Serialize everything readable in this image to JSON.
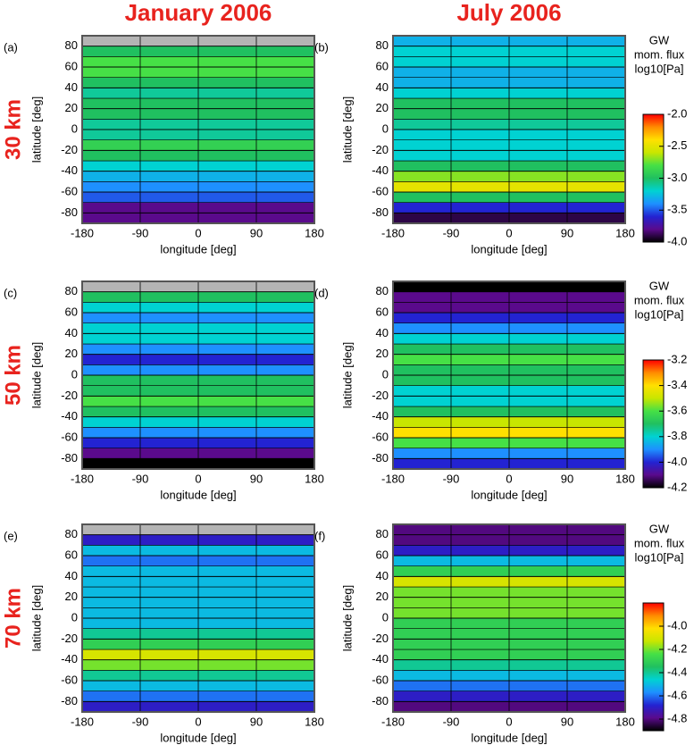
{
  "column_titles": [
    "January 2006",
    "July 2006"
  ],
  "row_labels": [
    "30 km",
    "50 km",
    "70 km"
  ],
  "colormap": [
    "#000000",
    "#5a0a8c",
    "#2323d2",
    "#1e90ff",
    "#00d2d2",
    "#20c060",
    "#46e046",
    "#c8e600",
    "#ffe000",
    "#ff8c00",
    "#ff0000"
  ],
  "colorbars": [
    {
      "title": [
        "GW",
        "mom. flux",
        "log10[Pa]"
      ],
      "lim": [
        -4,
        -2
      ],
      "ticks": [
        {
          "value": -4,
          "label": "-4.0"
        },
        -3.5,
        {
          "value": -3,
          "label": "-3.0"
        },
        -2.5,
        {
          "value": -2,
          "label": "-2.0"
        }
      ]
    },
    {
      "title": [
        "GW",
        "mom. flux",
        "log10[Pa]"
      ],
      "lim": [
        -4.2,
        -3.2
      ],
      "ticks": [
        -4.2,
        {
          "value": -4,
          "label": "-4.0"
        },
        -3.8,
        -3.6,
        -3.4,
        -3.2
      ]
    },
    {
      "title": [
        "GW",
        "mom. flux",
        "log10[Pa]"
      ],
      "lim": [
        -4.9,
        -3.8
      ],
      "ticks": [
        -4.8,
        -4.6,
        -4.4,
        -4.2,
        {
          "value": -4,
          "label": "-4.0"
        }
      ]
    }
  ],
  "panels": [
    {
      "label": "(a)",
      "xlabel": "longitude [deg]",
      "ylabel": "latitude [deg]",
      "xlim": [
        -180,
        180
      ],
      "ylim": [
        -90,
        90
      ],
      "xticks": [
        -180,
        -90,
        0,
        90,
        180
      ],
      "yticks": [
        -80,
        -60,
        -40,
        -20,
        0,
        20,
        40,
        60,
        80
      ],
      "field": {
        "lat": [
          -85,
          -75,
          -65,
          -55,
          -45,
          -35,
          -25,
          -15,
          -5,
          5,
          15,
          25,
          35,
          45,
          55,
          65,
          75,
          85
        ],
        "values": [
          -3.8,
          -3.8,
          -3.5,
          -3.4,
          -3.3,
          -3.2,
          -3.0,
          -2.9,
          -3.1,
          -3.1,
          -3.0,
          -3.0,
          -3.1,
          -3.0,
          -2.8,
          -2.8,
          -3.0,
          null
        ]
      }
    },
    {
      "label": "(b)",
      "xlabel": "longitude [deg]",
      "ylabel": "latitude [deg]",
      "xlim": [
        -180,
        180
      ],
      "ylim": [
        -90,
        90
      ],
      "xticks": [
        -180,
        -90,
        0,
        90,
        180
      ],
      "yticks": [
        -80,
        -60,
        -40,
        -20,
        0,
        20,
        40,
        60,
        80
      ],
      "field": {
        "lat": [
          -85,
          -75,
          -65,
          -55,
          -45,
          -35,
          -25,
          -15,
          -5,
          5,
          15,
          25,
          35,
          45,
          55,
          65,
          75,
          85
        ],
        "values": [
          -3.9,
          -3.6,
          -3.0,
          -2.5,
          -2.7,
          -3.0,
          -3.2,
          -3.2,
          -3.2,
          -3.1,
          -3.0,
          -3.0,
          -3.2,
          -3.3,
          -3.3,
          -3.2,
          -3.2,
          -3.3
        ]
      }
    },
    {
      "label": "(c)",
      "xlabel": "longitude [deg]",
      "ylabel": "latitude [deg]",
      "xlim": [
        -180,
        180
      ],
      "ylim": [
        -90,
        90
      ],
      "xticks": [
        -180,
        -90,
        0,
        90,
        180
      ],
      "yticks": [
        -80,
        -60,
        -40,
        -20,
        0,
        20,
        40,
        60,
        80
      ],
      "field": {
        "lat": [
          -85,
          -75,
          -65,
          -55,
          -45,
          -35,
          -25,
          -15,
          -5,
          5,
          15,
          25,
          35,
          45,
          55,
          65,
          75,
          85
        ],
        "values": [
          -4.2,
          -4.1,
          -4.0,
          -3.9,
          -3.8,
          -3.7,
          -3.6,
          -3.7,
          -3.7,
          -3.9,
          -4.0,
          -3.9,
          -3.8,
          -3.8,
          -3.9,
          -3.8,
          -3.7,
          null
        ]
      }
    },
    {
      "label": "(d)",
      "xlabel": "longitude [deg]",
      "ylabel": "latitude [deg]",
      "xlim": [
        -180,
        180
      ],
      "ylim": [
        -90,
        90
      ],
      "xticks": [
        -180,
        -90,
        0,
        90,
        180
      ],
      "yticks": [
        -80,
        -60,
        -40,
        -20,
        0,
        20,
        40,
        60,
        80
      ],
      "field": {
        "lat": [
          -85,
          -75,
          -65,
          -55,
          -45,
          -35,
          -25,
          -15,
          -5,
          5,
          15,
          25,
          35,
          45,
          55,
          65,
          75,
          85
        ],
        "values": [
          -4.0,
          -3.9,
          -3.6,
          -3.4,
          -3.5,
          -3.7,
          -3.8,
          -3.8,
          -3.7,
          -3.7,
          -3.6,
          -3.7,
          -3.8,
          -3.9,
          -4.0,
          -4.1,
          -4.1,
          -4.2
        ]
      }
    },
    {
      "label": "(e)",
      "xlabel": "longitude [deg]",
      "ylabel": "latitude [deg]",
      "xlim": [
        -180,
        180
      ],
      "ylim": [
        -90,
        90
      ],
      "xticks": [
        -180,
        -90,
        0,
        90,
        180
      ],
      "yticks": [
        -80,
        -60,
        -40,
        -20,
        0,
        20,
        40,
        60,
        80
      ],
      "field": {
        "lat": [
          -85,
          -75,
          -65,
          -55,
          -45,
          -35,
          -25,
          -15,
          -5,
          5,
          15,
          25,
          35,
          45,
          55,
          65,
          75,
          85
        ],
        "values": [
          -4.7,
          -4.6,
          -4.5,
          -4.4,
          -4.2,
          -4.1,
          -4.3,
          -4.4,
          -4.5,
          -4.5,
          -4.5,
          -4.5,
          -4.5,
          -4.5,
          -4.6,
          -4.5,
          -4.7,
          null
        ]
      }
    },
    {
      "label": "(f)",
      "xlabel": "longitude [deg]",
      "ylabel": "latitude [deg]",
      "xlim": [
        -180,
        180
      ],
      "ylim": [
        -90,
        90
      ],
      "xticks": [
        -180,
        -90,
        0,
        90,
        180
      ],
      "yticks": [
        -80,
        -60,
        -40,
        -20,
        0,
        20,
        40,
        60,
        80
      ],
      "field": {
        "lat": [
          -85,
          -75,
          -65,
          -55,
          -45,
          -35,
          -25,
          -15,
          -5,
          5,
          15,
          25,
          35,
          45,
          55,
          65,
          75,
          85
        ],
        "values": [
          -4.8,
          -4.7,
          -4.6,
          -4.5,
          -4.4,
          -4.3,
          -4.3,
          -4.3,
          -4.3,
          -4.2,
          -4.2,
          -4.2,
          -4.1,
          -4.3,
          -4.5,
          -4.7,
          -4.8,
          -4.8
        ]
      }
    }
  ]
}
